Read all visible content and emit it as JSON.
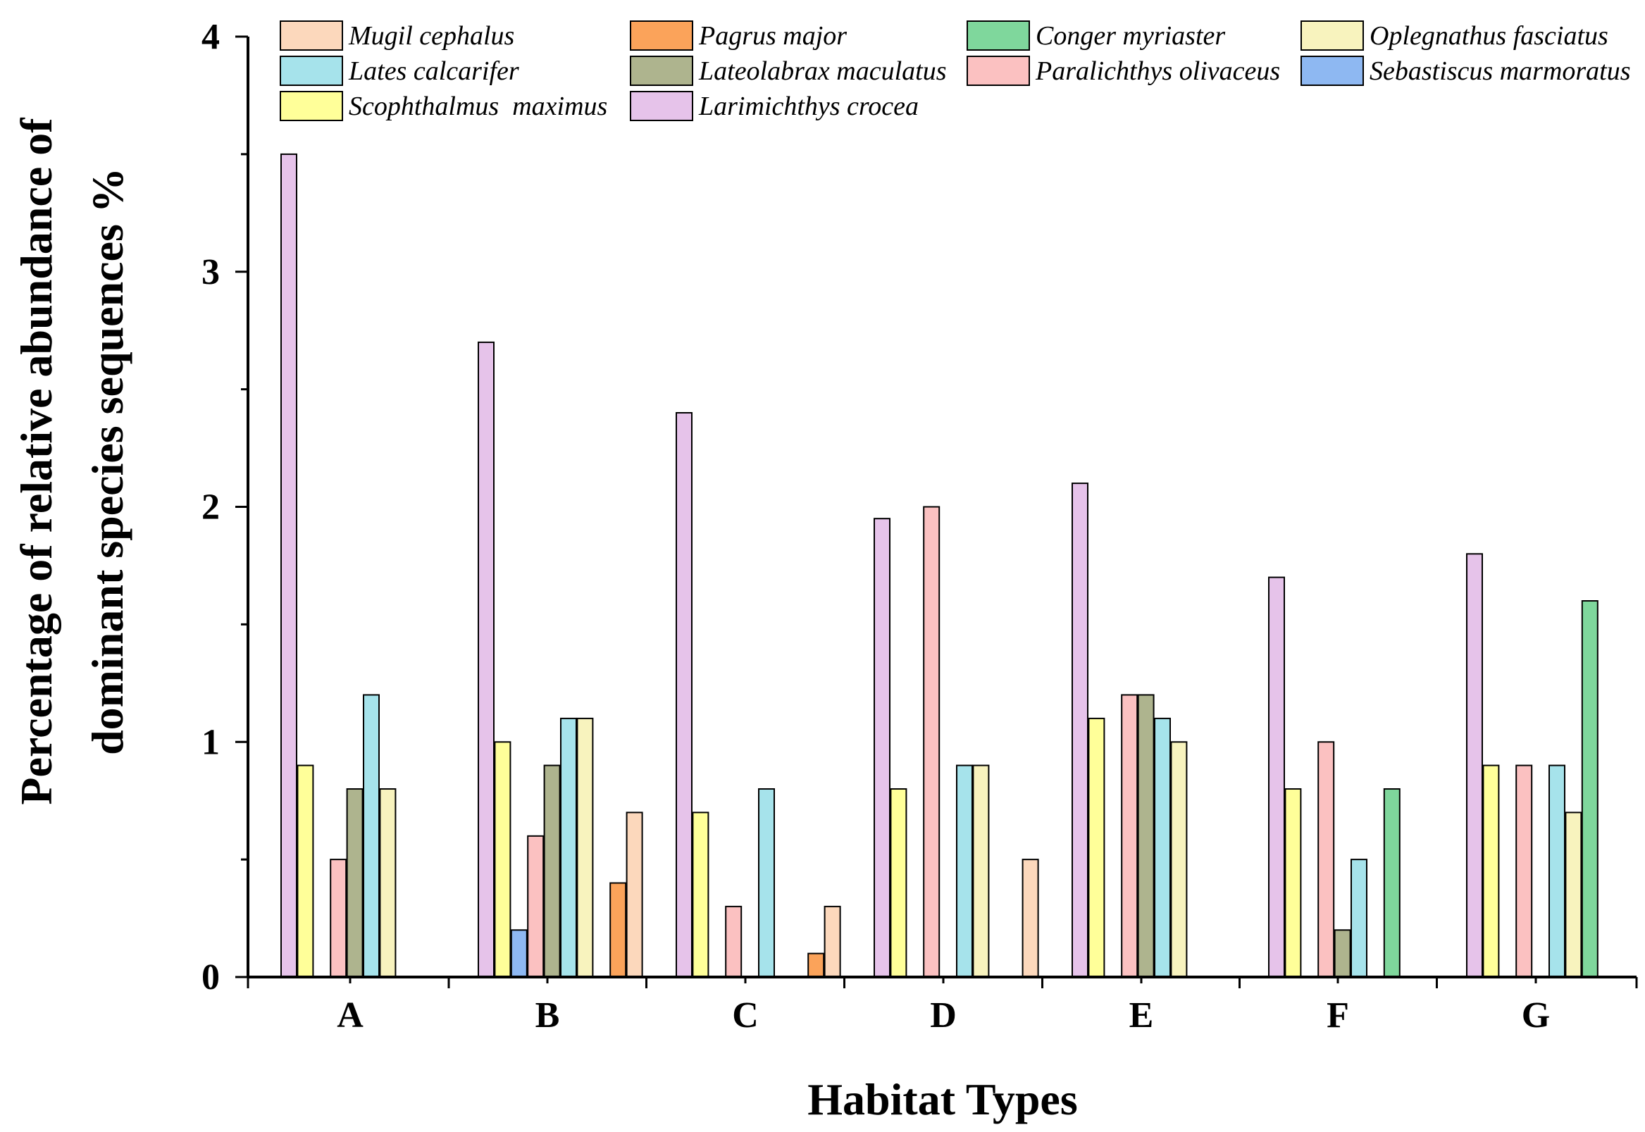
{
  "chart_data": {
    "type": "bar",
    "xlabel": "Habitat Types",
    "ylabel_lines": [
      "Percentage of relative abundance of",
      "dominant species sequences %"
    ],
    "ylim": [
      0,
      4
    ],
    "yticks": [
      0,
      1,
      2,
      3,
      4
    ],
    "categories": [
      "A",
      "B",
      "C",
      "D",
      "E",
      "F",
      "G"
    ],
    "series": [
      {
        "name": "Larimichthys crocea",
        "color": "#E6C3EA",
        "values": [
          3.5,
          2.7,
          2.4,
          1.95,
          2.1,
          1.7,
          1.8
        ]
      },
      {
        "name": "Scophthalmus  maximus",
        "color": "#FFFF99",
        "values": [
          0.9,
          1.0,
          0.7,
          0.8,
          1.1,
          0.8,
          0.9
        ]
      },
      {
        "name": "Sebastiscus marmoratus",
        "color": "#8EB8F2",
        "values": [
          0,
          0.2,
          0,
          0,
          0,
          0,
          0
        ]
      },
      {
        "name": "Paralichthys olivaceus",
        "color": "#FBC1C1",
        "values": [
          0.5,
          0.6,
          0.3,
          2.0,
          1.2,
          1.0,
          0.9
        ]
      },
      {
        "name": "Lateolabrax maculatus",
        "color": "#AEB48E",
        "values": [
          0.8,
          0.9,
          0,
          0,
          1.2,
          0.2,
          0
        ]
      },
      {
        "name": "Lates calcarifer",
        "color": "#A6E3EB",
        "values": [
          1.2,
          1.1,
          0.8,
          0.9,
          1.1,
          0.5,
          0.9
        ]
      },
      {
        "name": "Oplegnathus fasciatus",
        "color": "#F8F3BE",
        "values": [
          0.8,
          1.1,
          0,
          0.9,
          1.0,
          0,
          0.7
        ]
      },
      {
        "name": "Conger myriaster",
        "color": "#7FD79C",
        "values": [
          0,
          0,
          0,
          0,
          0,
          0.8,
          1.6
        ]
      },
      {
        "name": "Pagrus major",
        "color": "#FBA35A",
        "values": [
          0,
          0.4,
          0.1,
          0,
          0,
          0,
          0
        ]
      },
      {
        "name": "Mugil cephalus",
        "color": "#FCD8BC",
        "values": [
          0,
          0.7,
          0.3,
          0.5,
          0,
          0,
          0
        ]
      }
    ],
    "legend": {
      "placement": "top",
      "rows": [
        [
          "Mugil cephalus",
          "Pagrus major",
          "Conger myriaster",
          "Oplegnathus fasciatus"
        ],
        [
          "Lates calcarifer",
          "Lateolabrax maculatus",
          "Paralichthys olivaceus",
          "Sebastiscus marmoratus"
        ],
        [
          "Scophthalmus  maximus",
          "Larimichthys crocea"
        ]
      ]
    }
  }
}
